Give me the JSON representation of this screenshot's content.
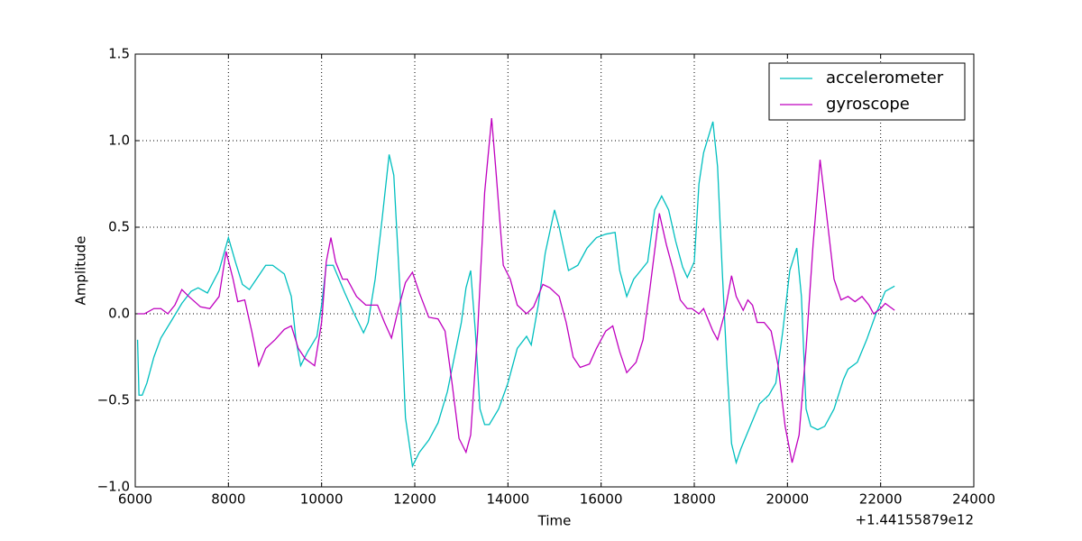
{
  "chart_data": {
    "type": "line",
    "x_label": "Time",
    "y_label": "Amplitude",
    "x_offset_label": "+1.44155879e12",
    "xlim": [
      6000,
      24000
    ],
    "ylim": [
      -1,
      1.5
    ],
    "xticks": [
      6000,
      8000,
      10000,
      12000,
      14000,
      16000,
      18000,
      20000,
      22000,
      24000
    ],
    "yticks": [
      {
        "value": -1,
        "label": "−1.0"
      },
      {
        "value": -0.5,
        "label": "−0.5"
      },
      {
        "value": 0,
        "label": "0.0"
      },
      0.5,
      {
        "value": 1,
        "label": "1.0"
      },
      1.5
    ],
    "grid": true,
    "legend": "upper right",
    "series": [
      {
        "name": "accelerometer",
        "color": "#00bfbf",
        "x": [
          6050,
          6080,
          6150,
          6250,
          6400,
          6550,
          6800,
          7000,
          7200,
          7350,
          7550,
          7800,
          8000,
          8150,
          8300,
          8450,
          8600,
          8800,
          8950,
          9200,
          9350,
          9450,
          9550,
          9700,
          9900,
          10000,
          10100,
          10250,
          10500,
          10700,
          10900,
          11000,
          11150,
          11300,
          11450,
          11550,
          11700,
          11800,
          11950,
          12100,
          12300,
          12500,
          12700,
          12850,
          13000,
          13100,
          13200,
          13300,
          13400,
          13500,
          13600,
          13800,
          14000,
          14200,
          14400,
          14500,
          14650,
          14800,
          15000,
          15100,
          15300,
          15500,
          15700,
          15900,
          16100,
          16300,
          16400,
          16550,
          16700,
          16850,
          17000,
          17150,
          17300,
          17450,
          17600,
          17750,
          17850,
          18000,
          18100,
          18200,
          18400,
          18500,
          18600,
          18700,
          18800,
          18900,
          19000,
          19200,
          19400,
          19600,
          19750,
          19900,
          20050,
          20200,
          20300,
          20400,
          20500,
          20650,
          20800,
          21000,
          21200,
          21300,
          21500,
          21700,
          21900,
          22100,
          22300
        ],
        "values": [
          -0.15,
          -0.47,
          -0.47,
          -0.4,
          -0.25,
          -0.14,
          -0.03,
          0.06,
          0.13,
          0.15,
          0.12,
          0.25,
          0.44,
          0.3,
          0.17,
          0.14,
          0.2,
          0.28,
          0.28,
          0.23,
          0.1,
          -0.15,
          -0.3,
          -0.22,
          -0.13,
          0.05,
          0.28,
          0.28,
          0.12,
          0.0,
          -0.11,
          -0.05,
          0.2,
          0.55,
          0.92,
          0.8,
          0.05,
          -0.6,
          -0.88,
          -0.8,
          -0.73,
          -0.63,
          -0.45,
          -0.25,
          -0.05,
          0.15,
          0.25,
          -0.1,
          -0.55,
          -0.64,
          -0.64,
          -0.55,
          -0.4,
          -0.2,
          -0.13,
          -0.18,
          0.05,
          0.35,
          0.6,
          0.5,
          0.25,
          0.28,
          0.38,
          0.44,
          0.46,
          0.47,
          0.25,
          0.1,
          0.2,
          0.25,
          0.3,
          0.6,
          0.68,
          0.6,
          0.42,
          0.27,
          0.21,
          0.3,
          0.75,
          0.93,
          1.11,
          0.85,
          0.25,
          -0.3,
          -0.75,
          -0.86,
          -0.78,
          -0.65,
          -0.52,
          -0.47,
          -0.4,
          -0.1,
          0.25,
          0.38,
          0.1,
          -0.55,
          -0.65,
          -0.67,
          -0.65,
          -0.55,
          -0.38,
          -0.32,
          -0.28,
          -0.15,
          0.0,
          0.13,
          0.16
        ]
      },
      {
        "name": "gyroscope",
        "color": "#bf00bf",
        "x": [
          6050,
          6200,
          6400,
          6550,
          6700,
          6850,
          7000,
          7150,
          7400,
          7600,
          7800,
          7950,
          8100,
          8200,
          8350,
          8500,
          8650,
          8800,
          9000,
          9200,
          9350,
          9500,
          9650,
          9850,
          10000,
          10100,
          10200,
          10300,
          10450,
          10550,
          10750,
          10950,
          11200,
          11350,
          11500,
          11650,
          11800,
          11950,
          12100,
          12300,
          12500,
          12650,
          12800,
          12950,
          13100,
          13200,
          13350,
          13500,
          13650,
          13750,
          13900,
          14050,
          14200,
          14400,
          14550,
          14750,
          14900,
          15100,
          15250,
          15400,
          15550,
          15750,
          15900,
          16100,
          16250,
          16400,
          16550,
          16750,
          16900,
          17050,
          17250,
          17400,
          17550,
          17700,
          17850,
          17950,
          18100,
          18200,
          18400,
          18500,
          18650,
          18800,
          18900,
          19050,
          19150,
          19250,
          19350,
          19500,
          19650,
          19800,
          19950,
          20100,
          20250,
          20400,
          20550,
          20700,
          20850,
          21000,
          21150,
          21300,
          21450,
          21600,
          21750,
          21850,
          22000,
          22100,
          22300
        ],
        "values": [
          0.0,
          0.0,
          0.03,
          0.03,
          0.0,
          0.05,
          0.14,
          0.1,
          0.04,
          0.03,
          0.1,
          0.36,
          0.2,
          0.07,
          0.08,
          -0.1,
          -0.3,
          -0.2,
          -0.15,
          -0.09,
          -0.07,
          -0.2,
          -0.26,
          -0.3,
          -0.05,
          0.3,
          0.44,
          0.3,
          0.2,
          0.2,
          0.1,
          0.05,
          0.05,
          -0.05,
          -0.14,
          0.03,
          0.18,
          0.24,
          0.12,
          -0.02,
          -0.03,
          -0.1,
          -0.4,
          -0.72,
          -0.8,
          -0.7,
          -0.1,
          0.7,
          1.13,
          0.8,
          0.28,
          0.2,
          0.05,
          0.0,
          0.04,
          0.17,
          0.15,
          0.1,
          -0.05,
          -0.25,
          -0.31,
          -0.29,
          -0.2,
          -0.1,
          -0.07,
          -0.22,
          -0.34,
          -0.28,
          -0.15,
          0.15,
          0.58,
          0.4,
          0.25,
          0.08,
          0.03,
          0.03,
          0.0,
          0.03,
          -0.1,
          -0.15,
          0.0,
          0.22,
          0.1,
          0.02,
          0.08,
          0.05,
          -0.05,
          -0.05,
          -0.1,
          -0.3,
          -0.65,
          -0.86,
          -0.7,
          -0.2,
          0.4,
          0.89,
          0.55,
          0.2,
          0.08,
          0.1,
          0.07,
          0.1,
          0.05,
          0.0,
          0.03,
          0.06,
          0.02
        ]
      }
    ]
  }
}
